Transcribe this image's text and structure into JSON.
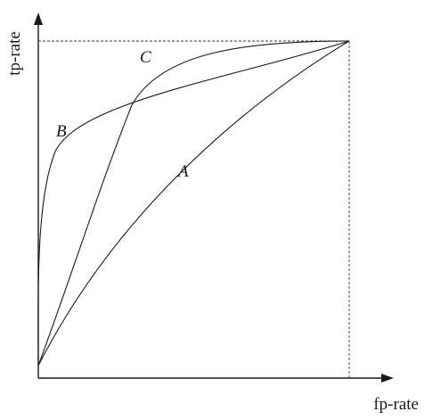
{
  "diagram": {
    "x_axis_label": "fp-rate",
    "y_axis_label": "tp-rate",
    "curves": [
      {
        "id": "A",
        "label": "A"
      },
      {
        "id": "B",
        "label": "B"
      },
      {
        "id": "C",
        "label": "C"
      }
    ]
  }
}
